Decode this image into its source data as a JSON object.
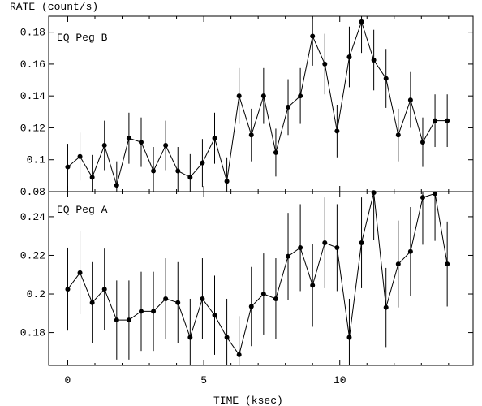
{
  "chart_data": {
    "type": "scatter",
    "ylabel": "RATE (count/s)",
    "xlabel": "TIME (ksec)",
    "x_ticks": [
      "0",
      "5",
      "10"
    ],
    "x_tick_values": [
      0,
      5,
      10
    ],
    "xlim": [
      -0.7,
      14.9
    ],
    "panels": [
      {
        "name": "EQ Peg B",
        "ylim": [
          0.08,
          0.19
        ],
        "y_ticks": [
          "0.08",
          "0.1",
          "0.12",
          "0.14",
          "0.16",
          "0.18"
        ],
        "y_tick_values": [
          0.08,
          0.1,
          0.12,
          0.14,
          0.16,
          0.18
        ],
        "x": [
          0,
          0.45,
          0.9,
          1.35,
          1.8,
          2.25,
          2.7,
          3.15,
          3.6,
          4.05,
          4.5,
          4.95,
          5.4,
          5.85,
          6.3,
          6.75,
          7.2,
          7.65,
          8.1,
          8.55,
          9.0,
          9.45,
          9.9,
          10.35,
          10.8,
          11.25,
          11.7,
          12.15,
          12.6,
          13.05,
          13.5,
          13.95
        ],
        "y": [
          0.0955,
          0.102,
          0.089,
          0.109,
          0.084,
          0.1135,
          0.111,
          0.093,
          0.109,
          0.093,
          0.089,
          0.098,
          0.1135,
          0.0865,
          0.14,
          0.1155,
          0.14,
          0.1045,
          0.133,
          0.14,
          0.1775,
          0.16,
          0.118,
          0.1645,
          0.1865,
          0.1625,
          0.151,
          0.1155,
          0.1375,
          0.111,
          0.1245,
          0.1245
        ],
        "err": [
          0.0145,
          0.015,
          0.014,
          0.0155,
          0.015,
          0.016,
          0.0155,
          0.015,
          0.0155,
          0.015,
          0.0145,
          0.015,
          0.016,
          0.015,
          0.0175,
          0.0165,
          0.0175,
          0.015,
          0.0175,
          0.0175,
          0.0185,
          0.019,
          0.0165,
          0.019,
          0.0195,
          0.019,
          0.0185,
          0.0165,
          0.0175,
          0.0155,
          0.0165,
          0.0165
        ]
      },
      {
        "name": "EQ Peg A",
        "ylim": [
          0.163,
          0.253
        ],
        "y_ticks": [
          "0.18",
          "0.2",
          "0.22",
          "0.24"
        ],
        "y_tick_values": [
          0.18,
          0.2,
          0.22,
          0.24
        ],
        "x": [
          0,
          0.45,
          0.9,
          1.35,
          1.8,
          2.25,
          2.7,
          3.15,
          3.6,
          4.05,
          4.5,
          4.95,
          5.4,
          5.85,
          6.3,
          6.75,
          7.2,
          7.65,
          8.1,
          8.55,
          9.0,
          9.45,
          9.9,
          10.35,
          10.8,
          11.25,
          11.7,
          12.15,
          12.6,
          13.05,
          13.5,
          13.95
        ],
        "y": [
          0.2025,
          0.211,
          0.1955,
          0.2025,
          0.1865,
          0.1865,
          0.191,
          0.191,
          0.1975,
          0.1955,
          0.1775,
          0.1975,
          0.189,
          0.1775,
          0.1685,
          0.1935,
          0.2,
          0.1975,
          0.2195,
          0.224,
          0.2045,
          0.2265,
          0.224,
          0.1775,
          0.2265,
          0.2525,
          0.193,
          0.2155,
          0.222,
          0.25,
          0.252,
          0.2155
        ],
        "err": [
          0.0215,
          0.0215,
          0.021,
          0.021,
          0.0205,
          0.0205,
          0.0205,
          0.0205,
          0.021,
          0.021,
          0.02,
          0.021,
          0.0205,
          0.02,
          0.02,
          0.0205,
          0.021,
          0.021,
          0.0225,
          0.0225,
          0.0215,
          0.0235,
          0.0225,
          0.02,
          0.0235,
          0.0245,
          0.0205,
          0.0225,
          0.023,
          0.0245,
          0.0245,
          0.022
        ]
      }
    ]
  }
}
